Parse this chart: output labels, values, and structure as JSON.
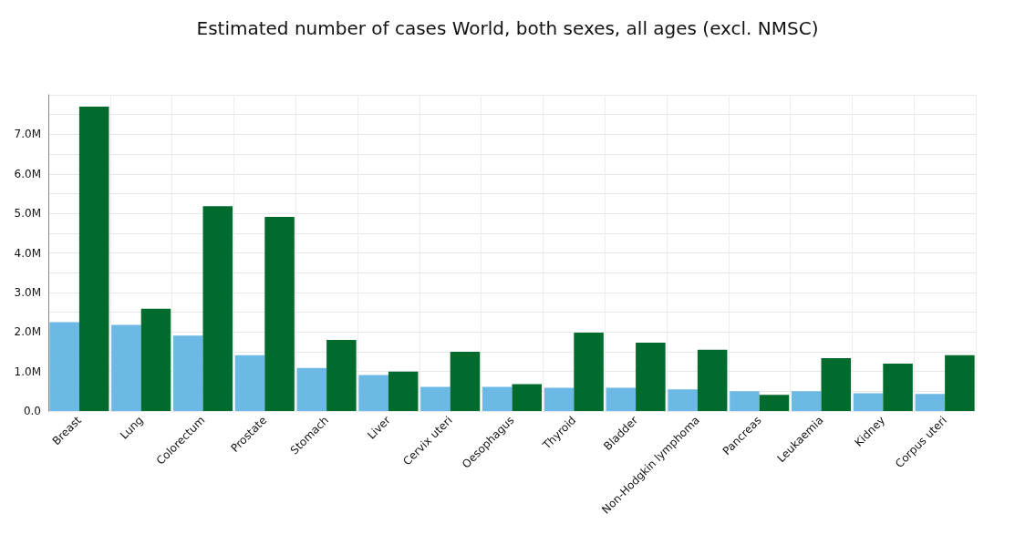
{
  "chart_data": {
    "type": "bar",
    "title": "Estimated number of cases World, both sexes, all ages (excl. NMSC)",
    "categories": [
      "Breast",
      "Lung",
      "Colorectum",
      "Prostate",
      "Stomach",
      "Liver",
      "Cervix uteri",
      "Oesophagus",
      "Thyroid",
      "Bladder",
      "Non-Hodgkin lymphoma",
      "Pancreas",
      "Leukaemia",
      "Kidney",
      "Corpus uteri"
    ],
    "series": [
      {
        "color": "#6cb9e5",
        "values": [
          2.25,
          2.18,
          1.91,
          1.41,
          1.09,
          0.91,
          0.61,
          0.61,
          0.59,
          0.59,
          0.55,
          0.5,
          0.5,
          0.45,
          0.43
        ]
      },
      {
        "color": "#006b2d",
        "values": [
          7.7,
          2.59,
          5.18,
          4.91,
          1.8,
          1.0,
          1.5,
          0.68,
          1.98,
          1.73,
          1.55,
          0.41,
          1.34,
          1.2,
          1.41
        ]
      }
    ],
    "ylim": [
      0,
      8
    ],
    "yticks": [
      {
        "value": 0,
        "label": "0.0"
      },
      {
        "value": 0.5,
        "label": null
      },
      {
        "value": 1,
        "label": "1.0M"
      },
      {
        "value": 1.5,
        "label": null
      },
      {
        "value": 2,
        "label": "2.0M"
      },
      {
        "value": 2.5,
        "label": null
      },
      {
        "value": 3,
        "label": "3.0M"
      },
      {
        "value": 3.5,
        "label": null
      },
      {
        "value": 4,
        "label": "4.0M"
      },
      {
        "value": 4.5,
        "label": null
      },
      {
        "value": 5,
        "label": "5.0M"
      },
      {
        "value": 5.5,
        "label": null
      },
      {
        "value": 6,
        "label": "6.0M"
      },
      {
        "value": 6.5,
        "label": null
      },
      {
        "value": 7,
        "label": "7.0M"
      },
      {
        "value": 7.5,
        "label": null
      },
      {
        "value": 8,
        "label": null
      }
    ],
    "grid": true
  }
}
